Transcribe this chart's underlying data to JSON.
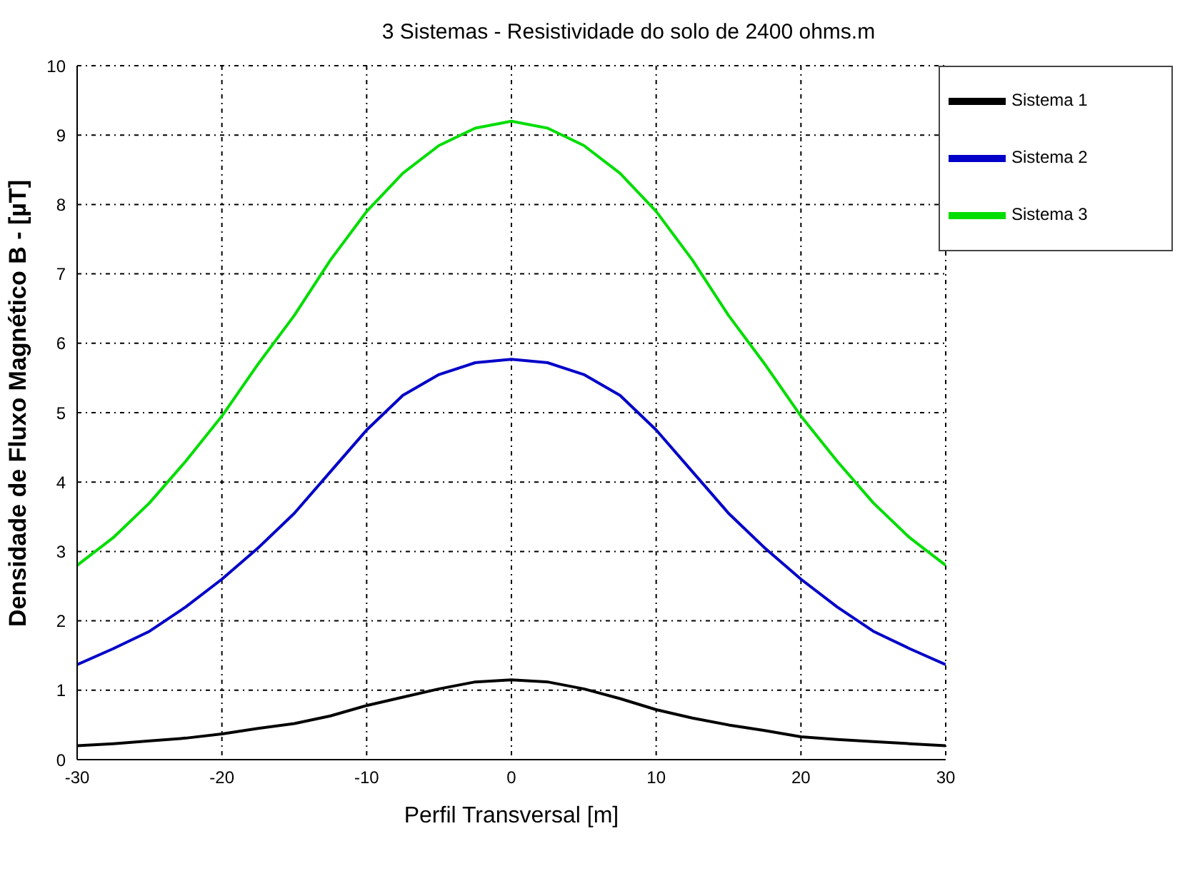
{
  "chart_data": {
    "type": "line",
    "title": "3 Sistemas - Resistividade do solo de 2400 ohms.m",
    "xlabel": "Perfil Transversal [m]",
    "ylabel": "Densidade de Fluxo Magnético B - [µT]",
    "x": [
      -30,
      -27.5,
      -25,
      -22.5,
      -20,
      -17.5,
      -15,
      -12.5,
      -10,
      -7.5,
      -5,
      -2.5,
      0,
      2.5,
      5,
      7.5,
      10,
      12.5,
      15,
      17.5,
      20,
      22.5,
      25,
      27.5,
      30
    ],
    "series": [
      {
        "name": "Sistema 1",
        "color": "#000000",
        "values": [
          0.2,
          0.23,
          0.27,
          0.31,
          0.37,
          0.45,
          0.52,
          0.63,
          0.78,
          0.9,
          1.02,
          1.12,
          1.15,
          1.12,
          1.02,
          0.88,
          0.72,
          0.6,
          0.5,
          0.42,
          0.33,
          0.29,
          0.26,
          0.23,
          0.2
        ]
      },
      {
        "name": "Sistema 2",
        "color": "#0000c8",
        "values": [
          1.37,
          1.6,
          1.85,
          2.2,
          2.6,
          3.05,
          3.55,
          4.15,
          4.75,
          5.25,
          5.55,
          5.72,
          5.77,
          5.72,
          5.55,
          5.25,
          4.75,
          4.15,
          3.55,
          3.05,
          2.6,
          2.2,
          1.85,
          1.6,
          1.37
        ]
      },
      {
        "name": "Sistema 3",
        "color": "#00dd00",
        "values": [
          2.8,
          3.2,
          3.7,
          4.3,
          4.95,
          5.7,
          6.4,
          7.2,
          7.9,
          8.45,
          8.85,
          9.1,
          9.2,
          9.1,
          8.85,
          8.45,
          7.9,
          7.2,
          6.4,
          5.7,
          4.95,
          4.3,
          3.7,
          3.2,
          2.8
        ]
      }
    ],
    "xlim": [
      -30,
      30
    ],
    "xticks": [
      -30,
      -20,
      -10,
      0,
      10,
      20,
      30
    ],
    "ylim": [
      0,
      10
    ],
    "yticks": [
      0,
      1,
      2,
      3,
      4,
      5,
      6,
      7,
      8,
      9,
      10
    ],
    "grid": true,
    "legend": "top right",
    "marker": "none",
    "line_style": "solid"
  }
}
